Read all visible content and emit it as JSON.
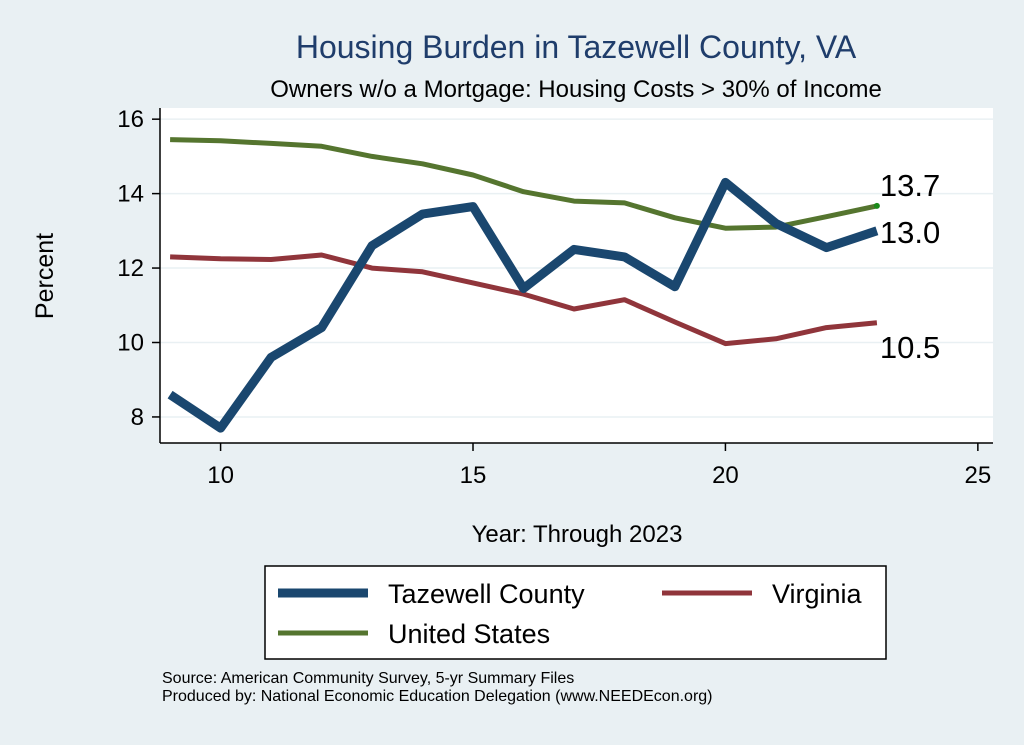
{
  "colors": {
    "background": "#e9f0f3",
    "plot_background": "#ffffff",
    "gridline": "#e9f0f3",
    "title": "#1f3d6b",
    "tazewell": "#1a476f",
    "virginia": "#90353b",
    "united_states": "#55752f"
  },
  "chart_data": {
    "type": "line",
    "title": "Housing Burden in Tazewell County, VA",
    "subtitle": "Owners w/o a Mortgage: Housing Costs > 30% of Income",
    "xlabel": "Year: Through 2023",
    "ylabel": "Percent",
    "xlim": [
      8.8,
      25.3
    ],
    "ylim": [
      7.3,
      16.3
    ],
    "xticks": [
      10,
      15,
      20,
      25
    ],
    "yticks": [
      8,
      10,
      12,
      14,
      16
    ],
    "grid": true,
    "legend_position": "bottom",
    "series": [
      {
        "name": "Tazewell County",
        "color": "#1a476f",
        "x": [
          9,
          10,
          11,
          12,
          13,
          14,
          15,
          16,
          17,
          18,
          19,
          20,
          21,
          22,
          23
        ],
        "y": [
          8.6,
          7.7,
          9.6,
          10.4,
          12.6,
          13.45,
          13.65,
          11.45,
          12.5,
          12.3,
          11.5,
          14.3,
          13.2,
          12.55,
          13.0
        ],
        "end_label": "13.0"
      },
      {
        "name": "Virginia",
        "color": "#90353b",
        "x": [
          9,
          10,
          11,
          12,
          13,
          14,
          15,
          16,
          17,
          18,
          19,
          20,
          21,
          22,
          23
        ],
        "y": [
          12.3,
          12.25,
          12.23,
          12.35,
          12.0,
          11.9,
          11.6,
          11.3,
          10.9,
          11.15,
          10.55,
          9.97,
          10.1,
          10.4,
          10.53
        ],
        "end_label": "10.5"
      },
      {
        "name": "United States",
        "color": "#55752f",
        "x": [
          9,
          10,
          11,
          12,
          13,
          14,
          15,
          16,
          17,
          18,
          19,
          20,
          21,
          22,
          23
        ],
        "y": [
          15.45,
          15.42,
          15.35,
          15.27,
          15.0,
          14.8,
          14.5,
          14.05,
          13.8,
          13.75,
          13.35,
          13.07,
          13.1,
          13.38,
          13.67
        ],
        "end_label": "13.7"
      }
    ]
  },
  "footer": {
    "source": "Source: American Community Survey, 5-yr Summary Files",
    "produced_by": "Produced by: National Economic Education Delegation (www.NEEDEcon.org)"
  }
}
